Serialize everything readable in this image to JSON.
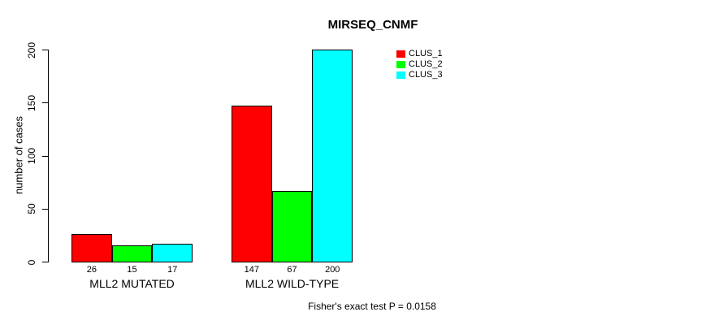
{
  "figure": {
    "title": "MIRSEQ_CNMF",
    "y_axis_label": "number of cases",
    "annotation": "Fisher's exact test P = 0.0158"
  },
  "legend": {
    "items": [
      {
        "label": "CLUS_1",
        "color": "#FF0000"
      },
      {
        "label": "CLUS_2",
        "color": "#00FF00"
      },
      {
        "label": "CLUS_3",
        "color": "#00FFFF"
      }
    ]
  },
  "chart_data": {
    "type": "bar",
    "title": "MIRSEQ_CNMF",
    "categories": [
      "MLL2 MUTATED",
      "MLL2 WILD-TYPE"
    ],
    "series": [
      {
        "name": "CLUS_1",
        "color": "#FF0000",
        "values": [
          26,
          147
        ]
      },
      {
        "name": "CLUS_2",
        "color": "#00FF00",
        "values": [
          15,
          67
        ]
      },
      {
        "name": "CLUS_3",
        "color": "#00FFFF",
        "values": [
          17,
          200
        ]
      }
    ],
    "xlabel": "",
    "ylabel": "number of cases",
    "ylim": [
      0,
      200
    ],
    "yticks": [
      0,
      50,
      100,
      150,
      200
    ],
    "bar_value_labels_shown": true,
    "grid": false,
    "legend_position": "inside-top-right",
    "annotation": "Fisher's exact test P = 0.0158"
  }
}
